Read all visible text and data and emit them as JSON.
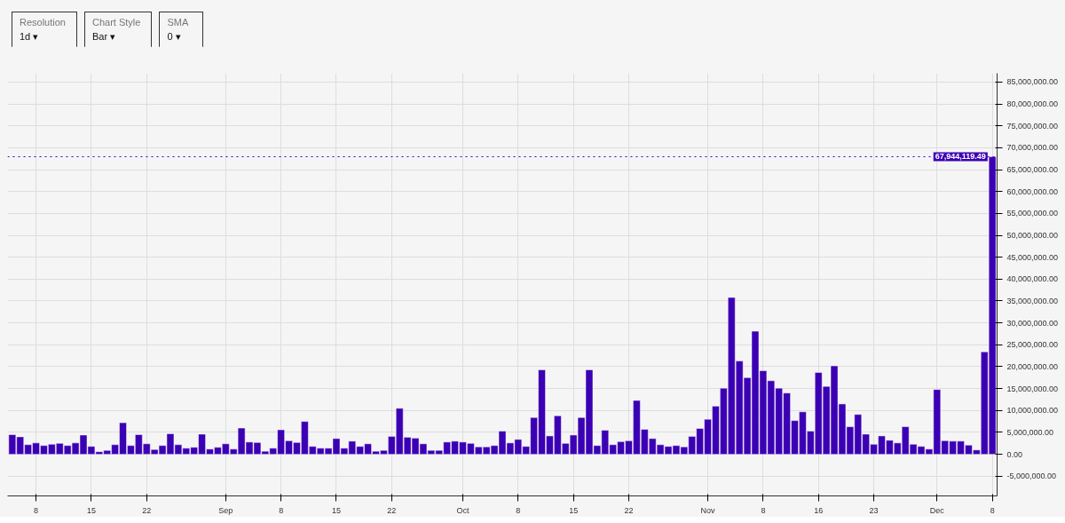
{
  "chart_data": {
    "type": "bar",
    "annotations": [
      "Resolution",
      "1d ▾",
      "Chart Style",
      "Bar ▾",
      "SMA",
      "0 ▾"
    ],
    "categories": [
      null,
      null,
      null,
      "8",
      null,
      null,
      null,
      null,
      null,
      null,
      "15",
      null,
      null,
      null,
      null,
      null,
      null,
      "22",
      null,
      null,
      null,
      null,
      null,
      null,
      null,
      null,
      null,
      "Sep",
      null,
      null,
      null,
      null,
      null,
      null,
      "8",
      null,
      null,
      null,
      null,
      null,
      null,
      "15",
      null,
      null,
      null,
      null,
      null,
      null,
      "22",
      null,
      null,
      null,
      null,
      null,
      null,
      null,
      null,
      "Oct",
      null,
      null,
      null,
      null,
      null,
      null,
      "8",
      null,
      null,
      null,
      null,
      null,
      null,
      "15",
      null,
      null,
      null,
      null,
      null,
      null,
      "22",
      null,
      null,
      null,
      null,
      null,
      null,
      null,
      null,
      null,
      "Nov",
      null,
      null,
      null,
      null,
      null,
      null,
      "8",
      null,
      null,
      null,
      null,
      null,
      null,
      "16",
      null,
      null,
      null,
      null,
      null,
      null,
      "23",
      null,
      null,
      null,
      null,
      null,
      null,
      null,
      "Dec",
      null,
      null,
      null,
      null,
      null,
      null,
      "8"
    ],
    "values": [
      4500000,
      4000000,
      2200000,
      2600000,
      2000000,
      2300000,
      2500000,
      2000000,
      2600000,
      4400000,
      1800000,
      600000,
      900000,
      2200000,
      7200000,
      2000000,
      4500000,
      2400000,
      1100000,
      2000000,
      4700000,
      2200000,
      1400000,
      1600000,
      4600000,
      1200000,
      1600000,
      2400000,
      1200000,
      6000000,
      2800000,
      2700000,
      700000,
      1400000,
      5600000,
      3100000,
      2700000,
      7500000,
      1800000,
      1400000,
      1400000,
      3600000,
      1400000,
      3000000,
      1800000,
      2400000,
      700000,
      900000,
      4100000,
      10500000,
      3900000,
      3700000,
      2400000,
      900000,
      900000,
      2800000,
      3000000,
      2800000,
      2500000,
      1700000,
      1700000,
      2000000,
      5300000,
      2600000,
      3400000,
      1800000,
      8400000,
      19300000,
      4200000,
      8800000,
      2500000,
      4400000,
      8400000,
      19300000,
      2000000,
      5500000,
      2200000,
      2900000,
      3100000,
      12300000,
      5700000,
      3600000,
      2200000,
      1800000,
      2000000,
      1700000,
      4100000,
      5900000,
      8000000,
      11000000,
      15100000,
      35800000,
      21300000,
      17500000,
      28100000,
      19100000,
      16800000,
      15100000,
      14000000,
      7700000,
      9700000,
      5300000,
      18700000,
      15500000,
      20200000,
      11500000,
      6300000,
      9100000,
      4600000,
      2300000,
      4200000,
      3200000,
      2600000,
      6300000,
      2300000,
      1800000,
      1200000,
      14800000,
      3100000,
      3000000,
      3000000,
      2100000,
      1000000,
      23400000,
      67944119.49
    ],
    "color": "#3c00b4",
    "ylim": [
      -9500000,
      87000000
    ],
    "yticks": [
      {
        "value": -5000000,
        "label": "-5,000,000.00"
      },
      {
        "value": 0,
        "label": "0.00"
      },
      {
        "value": 5000000,
        "label": "5,000,000.00"
      },
      {
        "value": 10000000,
        "label": "10,000,000.00"
      },
      {
        "value": 15000000,
        "label": "15,000,000.00"
      },
      {
        "value": 20000000,
        "label": "20,000,000.00"
      },
      {
        "value": 25000000,
        "label": "25,000,000.00"
      },
      {
        "value": 30000000,
        "label": "30,000,000.00"
      },
      {
        "value": 35000000,
        "label": "35,000,000.00"
      },
      {
        "value": 40000000,
        "label": "40,000,000.00"
      },
      {
        "value": 45000000,
        "label": "45,000,000.00"
      },
      {
        "value": 50000000,
        "label": "50,000,000.00"
      },
      {
        "value": 55000000,
        "label": "55,000,000.00"
      },
      {
        "value": 60000000,
        "label": "60,000,000.00"
      },
      {
        "value": 65000000,
        "label": "65,000,000.00"
      },
      {
        "value": 70000000,
        "label": "70,000,000.00"
      },
      {
        "value": 75000000,
        "label": "75,000,000.00"
      },
      {
        "value": 80000000,
        "label": "80,000,000.00"
      },
      {
        "value": 85000000,
        "label": "85,000,000.00"
      }
    ],
    "ref_lines": [
      {
        "axis": "y",
        "value": 67944119.49,
        "label": "67,944,119.49",
        "color": "#3c00b4",
        "line_style": "dotted"
      }
    ],
    "grid": true
  }
}
